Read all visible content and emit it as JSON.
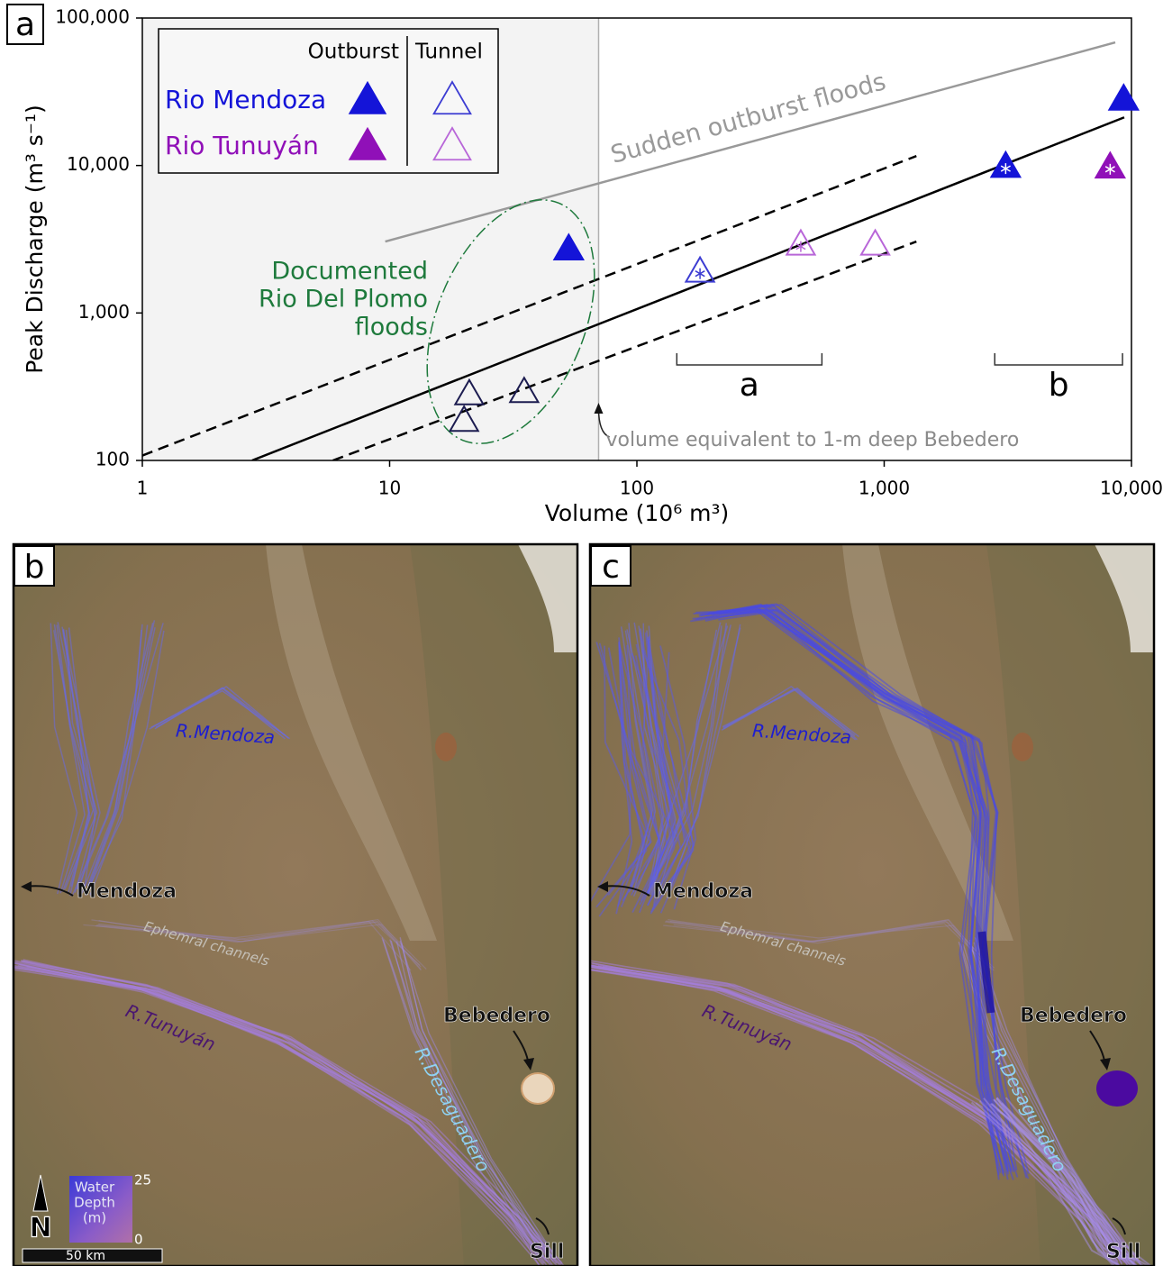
{
  "chart_data": {
    "type": "scatter",
    "panel": "a",
    "x_label": "Volume (10⁶ m³)",
    "y_label": "Peak Discharge (m³ s⁻¹)",
    "log_x": true,
    "log_y": true,
    "xlim": [
      1,
      10000
    ],
    "ylim": [
      100,
      100000
    ],
    "xticks": [
      1,
      10,
      100,
      {
        "value": 1000,
        "label": "1,000"
      },
      {
        "value": 10000,
        "label": "10,000"
      }
    ],
    "yticks": [
      100,
      {
        "value": 1000,
        "label": "1,000"
      },
      {
        "value": 10000,
        "label": "10,000"
      },
      {
        "value": 100000,
        "label": "100,000"
      }
    ],
    "legend": {
      "position": "upper left",
      "columns": [
        "Outburst",
        "Tunnel"
      ]
    },
    "series": [
      {
        "name": "Rio Mendoza",
        "filled": true,
        "color": "#1414d8",
        "x": [
          53,
          3100,
          9300
        ],
        "values": [
          2700,
          9800,
          28000
        ],
        "asterisk": [
          false,
          true,
          false
        ]
      },
      {
        "name": "Rio Mendoza",
        "filled": false,
        "color": "#3c3cd2",
        "x": [
          180
        ],
        "values": [
          1900
        ],
        "asterisk": [
          true
        ]
      },
      {
        "name": "Rio Tunuyán",
        "filled": true,
        "color": "#9010b8",
        "x": [
          8200
        ],
        "values": [
          9700
        ],
        "asterisk": [
          true
        ]
      },
      {
        "name": "Rio Tunuyán",
        "filled": false,
        "color": "#b866d8",
        "x": [
          460,
          920
        ],
        "values": [
          2900,
          2900
        ],
        "asterisk": [
          true,
          false
        ]
      },
      {
        "filled": false,
        "color": "#1c1c50",
        "x": [
          21,
          35,
          20
        ],
        "values": [
          280,
          290,
          185
        ],
        "asterisk": [
          false,
          false,
          false
        ]
      }
    ],
    "lines": [
      {
        "name": "Sudden outburst floods",
        "color": "#999999",
        "dashed": false,
        "x": [
          9.6,
          8600
        ],
        "values": [
          3050,
          68300
        ]
      },
      {
        "color": "#000000",
        "dashed": false,
        "x": [
          2.78,
          9350
        ],
        "values": [
          100,
          21200
        ]
      },
      {
        "color": "#000000",
        "dashed": true,
        "x": [
          1,
          1350
        ],
        "values": [
          108,
          11600
        ]
      },
      {
        "color": "#000000",
        "dashed": true,
        "x": [
          5.9,
          1350
        ],
        "values": [
          100,
          3050
        ]
      }
    ],
    "reference_line": {
      "x": 70,
      "label": "volume equivalent to 1-m deep Bebedero"
    },
    "annotation": {
      "lines": [
        "Documented",
        "Rio Del Plomo",
        "floods"
      ],
      "color": "#1e7a3c"
    },
    "ranges": [
      {
        "label": "a",
        "x": [
          145,
          560
        ]
      },
      {
        "label": "b",
        "x": [
          2800,
          9200
        ]
      }
    ]
  },
  "maps": [
    {
      "panel": "b",
      "labels": {
        "river_mendoza": "R.Mendoza",
        "city": "Mendoza",
        "channels": "Ephemral channels",
        "river_tunuyan": "R.Tunuyán",
        "lake": "Bebedero",
        "river_desaguadero": "R.Desaguadero",
        "sill": "Sill"
      },
      "legend": {
        "north": "N",
        "title": [
          "Water",
          "Depth",
          "(m)"
        ],
        "depth_range": [
          0,
          25
        ],
        "scale": "50 km"
      }
    },
    {
      "panel": "c",
      "labels": {
        "river_mendoza": "R.Mendoza",
        "city": "Mendoza",
        "channels": "Ephemral channels",
        "river_tunuyan": "R.Tunuyán",
        "lake": "Bebedero",
        "river_desaguadero": "R.Desaguadero",
        "sill": "Sill"
      }
    }
  ]
}
